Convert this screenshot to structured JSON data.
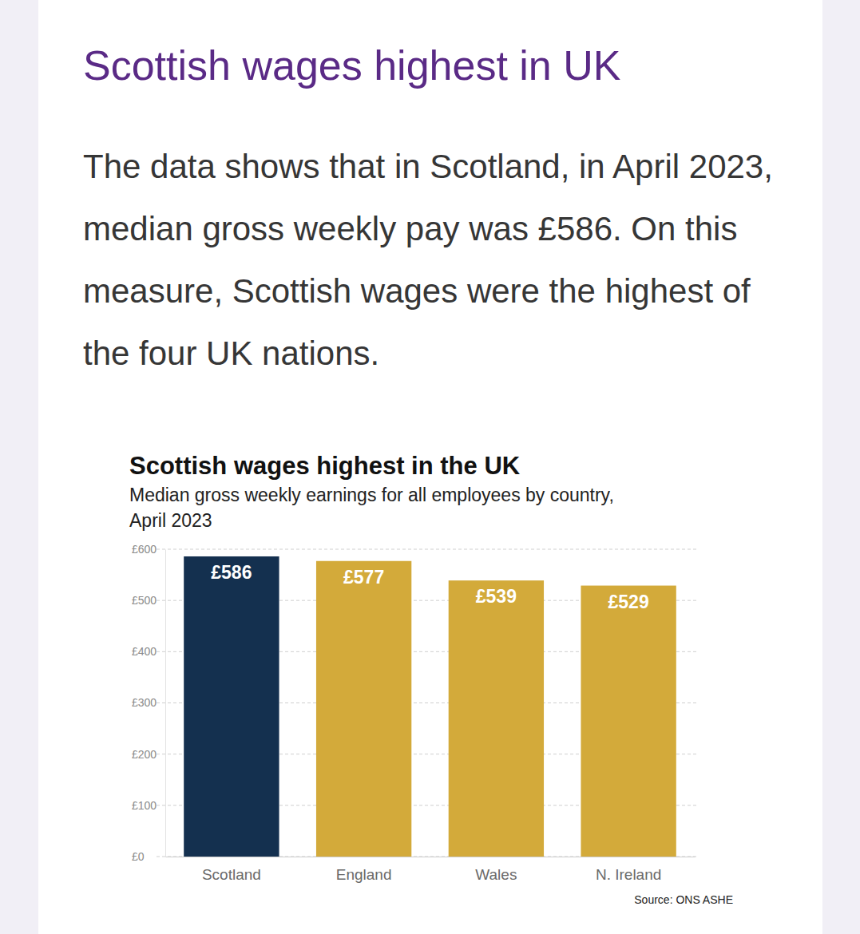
{
  "heading": "Scottish wages highest in UK",
  "paragraph": "The data shows that in Scotland, in April 2023, median gross weekly pay was £586. On this measure, Scottish wages were the highest of the four UK nations.",
  "chart_data": {
    "type": "bar",
    "title": "Scottish wages highest in the UK",
    "subtitle": "Median gross weekly earnings for all employees by country, April 2023",
    "categories": [
      "Scotland",
      "England",
      "Wales",
      "N. Ireland"
    ],
    "values": [
      586,
      577,
      539,
      529
    ],
    "value_labels": [
      "£586",
      "£577",
      "£539",
      "£529"
    ],
    "colors": [
      "#14304f",
      "#d3aa3a",
      "#d3aa3a",
      "#d3aa3a"
    ],
    "ylim": [
      0,
      600
    ],
    "yticks": [
      {
        "value": 0,
        "label": "£0"
      },
      {
        "value": 100,
        "label": "£100"
      },
      {
        "value": 200,
        "label": "£200"
      },
      {
        "value": 300,
        "label": "£300"
      },
      {
        "value": 400,
        "label": "£400"
      },
      {
        "value": 500,
        "label": "£500"
      },
      {
        "value": 600,
        "label": "£600"
      }
    ],
    "grid": true,
    "data_labels": true,
    "source": "Source: ONS ASHE"
  }
}
